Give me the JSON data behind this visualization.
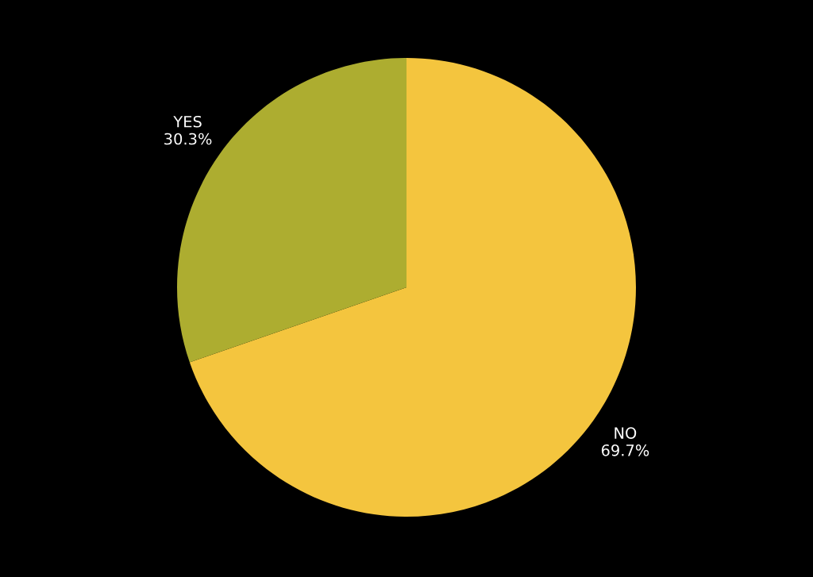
{
  "chart_data": {
    "type": "pie",
    "categories": [
      "NO",
      "YES"
    ],
    "values": [
      69.7,
      30.3
    ],
    "colors": [
      "#f4c53e",
      "#adad30"
    ],
    "value_labels": [
      "69.7%",
      "30.3%"
    ]
  }
}
